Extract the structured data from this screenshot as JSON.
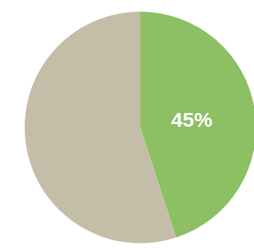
{
  "chart_data": {
    "type": "pie",
    "categories": [
      null,
      null
    ],
    "values": [
      45,
      55
    ],
    "value_labels": [
      "45%",
      null
    ],
    "colors": [
      "#8cc063",
      "#c4bea8"
    ],
    "data_labels": true
  }
}
